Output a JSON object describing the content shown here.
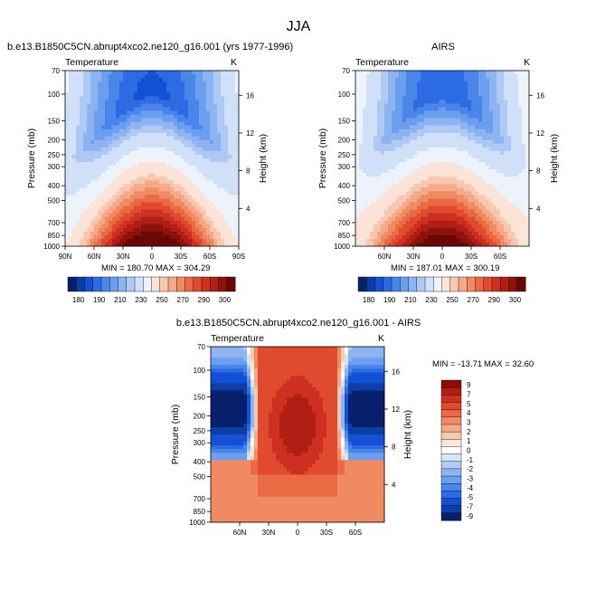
{
  "page": {
    "title": "JJA"
  },
  "colors": {
    "abs": [
      "#08206b",
      "#0c3ea6",
      "#1350d6",
      "#2c6be3",
      "#4a86ea",
      "#6a9eee",
      "#8db4f1",
      "#aecaf4",
      "#cfe0f8",
      "#eef3fb",
      "#fbe3d8",
      "#f8c7b0",
      "#f5a988",
      "#f08a63",
      "#ea6a44",
      "#e04a2e",
      "#cd3020",
      "#b01e14",
      "#8e120c",
      "#6a0808"
    ],
    "diff": [
      "#08206b",
      "#0c3ea6",
      "#1350d6",
      "#2c6be3",
      "#4a86ea",
      "#6a9eee",
      "#8db4f1",
      "#b0ccf5",
      "#d6e4f9",
      "#ffffff",
      "#fbe6dc",
      "#f8c9b2",
      "#f5a988",
      "#f08a63",
      "#ea6a44",
      "#e04a2e",
      "#cd3020",
      "#b01e14",
      "#8e0c08"
    ]
  },
  "chart_data": [
    {
      "type": "heatmap",
      "title": "b.e13.B1850C5CN.abrupt4xco2.ne120_g16.001 (yrs 1977-1996)",
      "left_label": "Temperature",
      "right_label": "K",
      "xlabel": "",
      "ylabel": "Pressure (mb)",
      "y2label": "Height (km)",
      "xlim": [
        90,
        -90
      ],
      "ylim": [
        1000,
        70
      ],
      "x_ticks": [
        "90N",
        "60N",
        "30N",
        "0",
        "30S",
        "60S",
        "90S"
      ],
      "y_ticks": [
        "70",
        "100",
        "150",
        "200",
        "250",
        "300",
        "400",
        "500",
        "700",
        "850",
        "1000"
      ],
      "y2_ticks": [
        "16",
        "12",
        "8",
        "4"
      ],
      "min_label": "MIN = 180.70",
      "max_label": "MAX = 304.29",
      "colorbar_ticks": [
        "180",
        "190",
        "210",
        "230",
        "250",
        "270",
        "290",
        "300"
      ],
      "field": {
        "surface_max": 301,
        "surface_min": 240,
        "tropopause_min": 193,
        "polar_top": 225
      }
    },
    {
      "type": "heatmap",
      "title": "AIRS",
      "left_label": "Temperature",
      "right_label": "K",
      "xlabel": "",
      "ylabel": "Pressure (mb)",
      "y2label": "Height (km)",
      "xlim": [
        90,
        -90
      ],
      "ylim": [
        1000,
        70
      ],
      "x_ticks": [
        "60N",
        "30N",
        "0",
        "30S",
        "60S"
      ],
      "y_ticks": [
        "70",
        "100",
        "150",
        "200",
        "250",
        "300",
        "400",
        "500",
        "700",
        "850",
        "1000"
      ],
      "y2_ticks": [
        "16",
        "12",
        "8",
        "4"
      ],
      "min_label": "MIN = 187.01",
      "max_label": "MAX = 300.19",
      "colorbar_ticks": [
        "180",
        "190",
        "210",
        "230",
        "250",
        "270",
        "290",
        "300"
      ],
      "field": {
        "surface_max": 298,
        "surface_min": 245,
        "tropopause_min": 195,
        "polar_top": 232
      }
    },
    {
      "type": "heatmap",
      "title": "b.e13.B1850C5CN.abrupt4xco2.ne120_g16.001 - AIRS",
      "left_label": "Temperature",
      "right_label": "K",
      "xlabel": "",
      "ylabel": "Pressure (mb)",
      "y2label": "Height (km)",
      "xlim": [
        90,
        -90
      ],
      "ylim": [
        1000,
        70
      ],
      "x_ticks": [
        "60N",
        "30N",
        "0",
        "30S",
        "60S"
      ],
      "y_ticks": [
        "70",
        "100",
        "150",
        "200",
        "250",
        "300",
        "400",
        "500",
        "700",
        "850",
        "1000"
      ],
      "y2_ticks": [
        "16",
        "12",
        "8",
        "4"
      ],
      "min_label": "MIN = -13.71",
      "max_label": "MAX =  32.60",
      "colorbar_ticks": [
        "9",
        "7",
        "5",
        "4",
        "3",
        "2",
        "1",
        "0",
        "-1",
        "-2",
        "-3",
        "-4",
        "-5",
        "-7",
        "-9"
      ],
      "field": {
        "upper_tropics": 12,
        "mid": 6,
        "low": 4.5,
        "polar_upper": -11
      }
    }
  ]
}
